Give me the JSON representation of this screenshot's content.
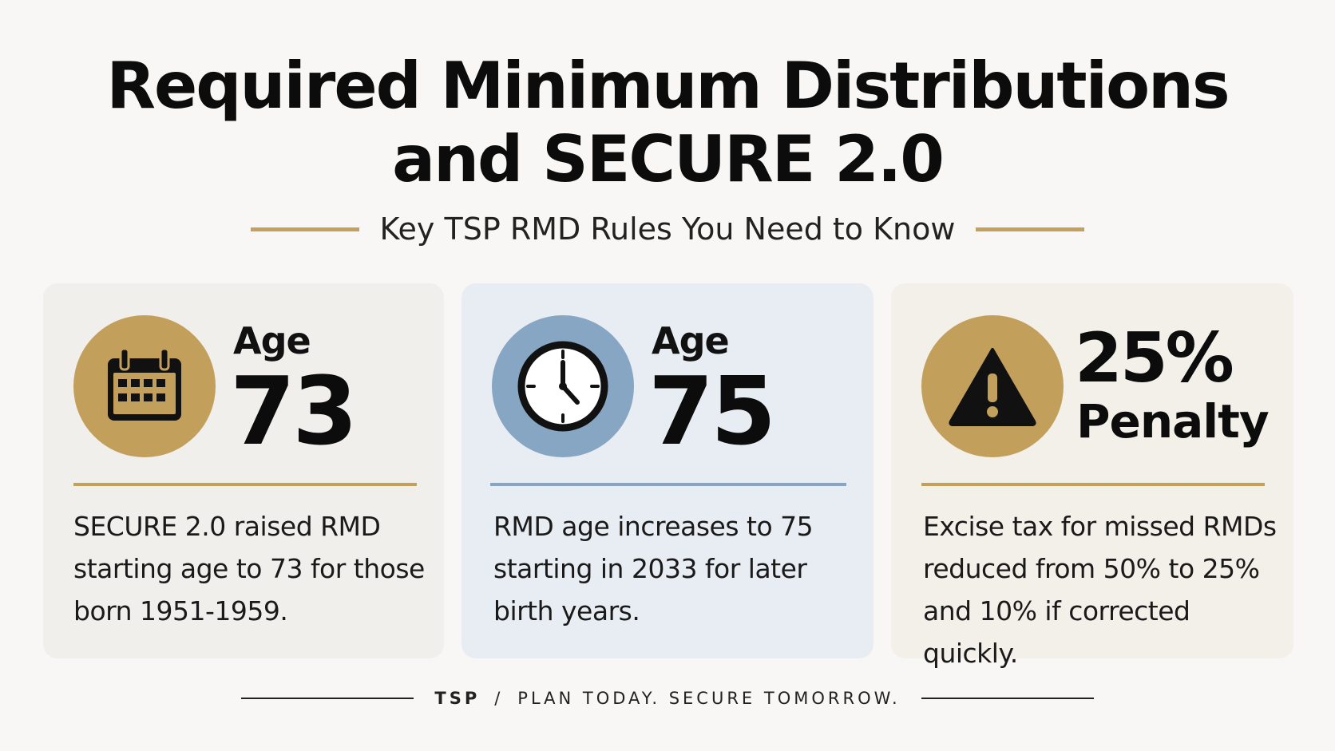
{
  "header": {
    "title_line1": "Required Minimum Distributions",
    "title_line2": "and SECURE 2.0",
    "subtitle": "Key TSP RMD Rules You Need to Know"
  },
  "cards": [
    {
      "icon": "calendar-icon",
      "stat_label": "Age",
      "stat_value": "73",
      "description": "SECURE 2.0 raised RMD starting age to 73 for those born 1951-1959.",
      "accent": "#c39f5c"
    },
    {
      "icon": "clock-icon",
      "stat_label": "Age",
      "stat_value": "75",
      "description": "RMD age increases to 75 starting in 2033 for later birth years.",
      "accent": "#86a6c3"
    },
    {
      "icon": "warning-icon",
      "stat_value": "25%",
      "stat_label": "Penalty",
      "description": "Excise tax for missed RMDs reduced from 50% to 25% and 10% if corrected quickly.",
      "accent": "#c39f5c"
    }
  ],
  "footer": {
    "brand": "TSP",
    "separator": "/",
    "tagline": "PLAN TODAY. SECURE TOMORROW."
  },
  "colors": {
    "gold": "#c4a05a",
    "blue": "#86a6c3",
    "background": "#f8f7f5"
  }
}
